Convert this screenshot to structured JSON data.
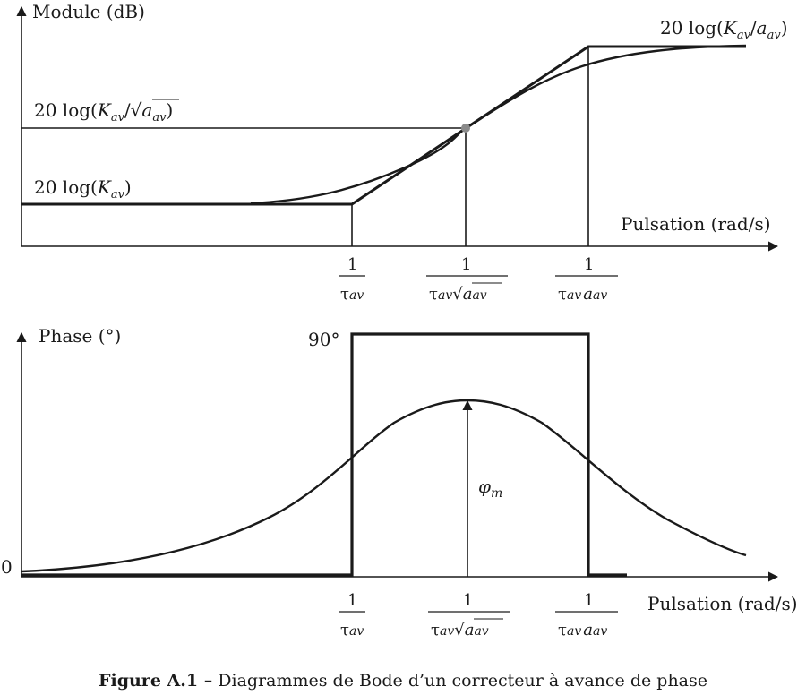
{
  "top_plot": {
    "y_axis_label": "Module (dB)",
    "x_axis_label": "Pulsation (rad/s)",
    "level_high": {
      "prefix": "20  log(",
      "K": "K",
      "K_sub": "av",
      "slash": "/",
      "a": "a",
      "a_sub": "av",
      "suffix": ")"
    },
    "level_mid": {
      "prefix": "20 log(",
      "K": "K",
      "K_sub": "av",
      "slash": "/",
      "sqrt": "√",
      "a": "a",
      "a_sub": "av",
      "suffix": ")"
    },
    "level_low": {
      "prefix": "20 log(",
      "K": "K",
      "K_sub": "av",
      "suffix": ")"
    }
  },
  "bottom_plot": {
    "y_axis_label": "Phase (°)",
    "x_axis_label": "Pulsation (rad/s)",
    "max_label": "90°",
    "zero_label": "0",
    "phi_label": "φ",
    "phi_sub": "m"
  },
  "ticks": {
    "numerator": "1",
    "t1": {
      "tau": "τ",
      "sub": "av"
    },
    "t2": {
      "tau": "τ",
      "sub": "av",
      "sqrt": "√",
      "a": "a",
      "a_sub": "av"
    },
    "t3": {
      "tau": "τ",
      "sub": "av",
      "a": "a",
      "a_sub": "av"
    }
  },
  "caption": {
    "label": "Figure A.1 –",
    "text": " Diagrammes de Bode d’un correcteur à avance de phase"
  },
  "colors": {
    "ink": "#1a1a1a",
    "point": "#8a8a8a"
  }
}
